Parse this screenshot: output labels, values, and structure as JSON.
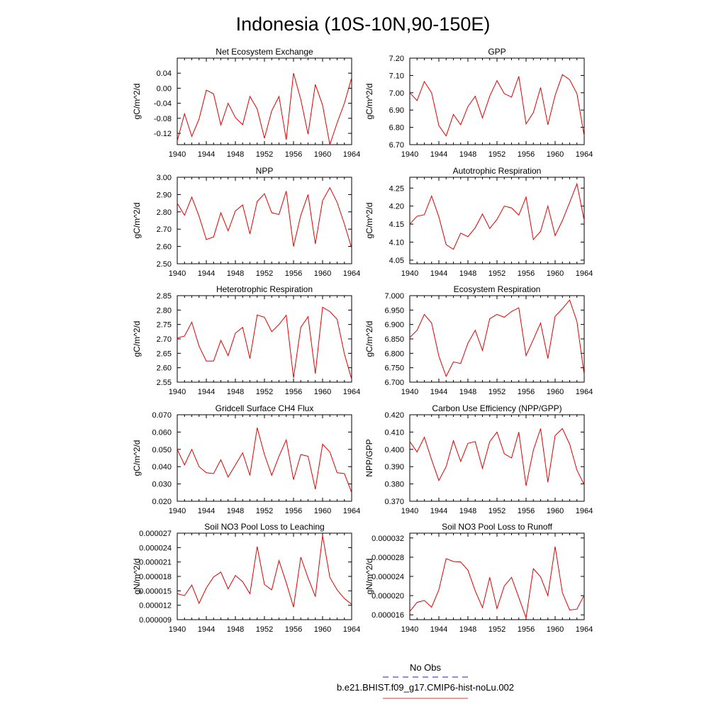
{
  "page": {
    "title": "Indonesia (10S-10N,90-150E)"
  },
  "legend": {
    "items": [
      {
        "label": "No Obs",
        "color": "#4a4acc",
        "dash": true
      },
      {
        "label": "b.e21.BHIST.f09_g17.CMIP6-hist-noLu.002",
        "color": "#e06060",
        "dash": false
      }
    ]
  },
  "chart_data": [
    {
      "type": "line",
      "title": "Net Ecosystem Exchange",
      "ylabel": "gC/m^2/d",
      "xlim": [
        1940,
        1964
      ],
      "ylim": [
        -0.15,
        0.08
      ],
      "xticks": [
        1940,
        1944,
        1948,
        1952,
        1956,
        1960,
        1964
      ],
      "xtick_labels": [
        "1940",
        "1944",
        "1948",
        "1952",
        "1956",
        "1960",
        "1964"
      ],
      "yticks": [
        -0.12,
        -0.08,
        -0.04,
        0.0,
        0.04
      ],
      "ytick_labels": [
        "-0.12",
        "-0.08",
        "-0.04",
        "0.00",
        "0.04"
      ],
      "line_color": "#e00000",
      "x": [
        1940,
        1941,
        1942,
        1943,
        1944,
        1945,
        1946,
        1947,
        1948,
        1949,
        1950,
        1951,
        1952,
        1953,
        1954,
        1955,
        1956,
        1957,
        1958,
        1959,
        1960,
        1961,
        1962,
        1963,
        1964
      ],
      "values": [
        -0.14,
        -0.068,
        -0.128,
        -0.082,
        -0.005,
        -0.015,
        -0.098,
        -0.04,
        -0.078,
        -0.097,
        -0.022,
        -0.055,
        -0.133,
        -0.06,
        -0.022,
        -0.137,
        0.04,
        -0.03,
        -0.122,
        0.01,
        -0.045,
        -0.15,
        -0.092,
        -0.04,
        0.028
      ]
    },
    {
      "type": "line",
      "title": "GPP",
      "ylabel": "gC/m^2/d",
      "xlim": [
        1940,
        1964
      ],
      "ylim": [
        6.7,
        7.2
      ],
      "xticks": [
        1940,
        1944,
        1948,
        1952,
        1956,
        1960,
        1964
      ],
      "xtick_labels": [
        "1940",
        "1944",
        "1948",
        "1952",
        "1956",
        "1960",
        "1964"
      ],
      "yticks": [
        6.7,
        6.8,
        6.9,
        7.0,
        7.1,
        7.2
      ],
      "ytick_labels": [
        "6.70",
        "6.80",
        "6.90",
        "7.00",
        "7.10",
        "7.20"
      ],
      "line_color": "#e00000",
      "x": [
        1940,
        1941,
        1942,
        1943,
        1944,
        1945,
        1946,
        1947,
        1948,
        1949,
        1950,
        1951,
        1952,
        1953,
        1954,
        1955,
        1956,
        1957,
        1958,
        1959,
        1960,
        1961,
        1962,
        1963,
        1964
      ],
      "values": [
        7.0,
        6.955,
        7.065,
        7.0,
        6.81,
        6.75,
        6.875,
        6.815,
        6.92,
        6.98,
        6.855,
        6.98,
        7.07,
        6.995,
        6.975,
        7.095,
        6.82,
        6.885,
        7.03,
        6.815,
        6.985,
        7.105,
        7.075,
        6.995,
        6.75
      ]
    },
    {
      "type": "line",
      "title": "NPP",
      "ylabel": "gC/m^2/d",
      "xlim": [
        1940,
        1964
      ],
      "ylim": [
        2.5,
        3.0
      ],
      "xticks": [
        1940,
        1944,
        1948,
        1952,
        1956,
        1960,
        1964
      ],
      "xtick_labels": [
        "1940",
        "1944",
        "1948",
        "1952",
        "1956",
        "1960",
        "1964"
      ],
      "yticks": [
        2.5,
        2.6,
        2.7,
        2.8,
        2.9,
        3.0
      ],
      "ytick_labels": [
        "2.50",
        "2.60",
        "2.70",
        "2.80",
        "2.90",
        "3.00"
      ],
      "line_color": "#e00000",
      "x": [
        1940,
        1941,
        1942,
        1943,
        1944,
        1945,
        1946,
        1947,
        1948,
        1949,
        1950,
        1951,
        1952,
        1953,
        1954,
        1955,
        1956,
        1957,
        1958,
        1959,
        1960,
        1961,
        1962,
        1963,
        1964
      ],
      "values": [
        2.85,
        2.78,
        2.885,
        2.775,
        2.64,
        2.655,
        2.795,
        2.69,
        2.805,
        2.84,
        2.672,
        2.86,
        2.905,
        2.795,
        2.785,
        2.92,
        2.6,
        2.78,
        2.9,
        2.615,
        2.865,
        2.94,
        2.855,
        2.73,
        2.59
      ]
    },
    {
      "type": "line",
      "title": "Autotrophic Respiration",
      "ylabel": "gC/m^2/d",
      "xlim": [
        1940,
        1964
      ],
      "ylim": [
        4.04,
        4.28
      ],
      "xticks": [
        1940,
        1944,
        1948,
        1952,
        1956,
        1960,
        1964
      ],
      "xtick_labels": [
        "1940",
        "1944",
        "1948",
        "1952",
        "1956",
        "1960",
        "1964"
      ],
      "yticks": [
        4.05,
        4.1,
        4.15,
        4.2,
        4.25
      ],
      "ytick_labels": [
        "4.05",
        "4.10",
        "4.15",
        "4.20",
        "4.25"
      ],
      "line_color": "#e00000",
      "x": [
        1940,
        1941,
        1942,
        1943,
        1944,
        1945,
        1946,
        1947,
        1948,
        1949,
        1950,
        1951,
        1952,
        1953,
        1954,
        1955,
        1956,
        1957,
        1958,
        1959,
        1960,
        1961,
        1962,
        1963,
        1964
      ],
      "values": [
        4.15,
        4.172,
        4.176,
        4.228,
        4.17,
        4.093,
        4.08,
        4.125,
        4.115,
        4.14,
        4.178,
        4.138,
        4.163,
        4.2,
        4.195,
        4.175,
        4.225,
        4.107,
        4.13,
        4.2,
        4.118,
        4.16,
        4.21,
        4.262,
        4.16
      ]
    },
    {
      "type": "line",
      "title": "Heterotrophic Respiration",
      "ylabel": "gC/m^2/d",
      "xlim": [
        1940,
        1964
      ],
      "ylim": [
        2.55,
        2.85
      ],
      "xticks": [
        1940,
        1944,
        1948,
        1952,
        1956,
        1960,
        1964
      ],
      "xtick_labels": [
        "1940",
        "1944",
        "1948",
        "1952",
        "1956",
        "1960",
        "1964"
      ],
      "yticks": [
        2.55,
        2.6,
        2.65,
        2.7,
        2.75,
        2.8,
        2.85
      ],
      "ytick_labels": [
        "2.55",
        "2.60",
        "2.65",
        "2.70",
        "2.75",
        "2.80",
        "2.85"
      ],
      "line_color": "#e00000",
      "x": [
        1940,
        1941,
        1942,
        1943,
        1944,
        1945,
        1946,
        1947,
        1948,
        1949,
        1950,
        1951,
        1952,
        1953,
        1954,
        1955,
        1956,
        1957,
        1958,
        1959,
        1960,
        1961,
        1962,
        1963,
        1964
      ],
      "values": [
        2.703,
        2.71,
        2.758,
        2.675,
        2.623,
        2.623,
        2.695,
        2.642,
        2.72,
        2.74,
        2.632,
        2.783,
        2.775,
        2.725,
        2.75,
        2.782,
        2.565,
        2.74,
        2.777,
        2.58,
        2.81,
        2.795,
        2.768,
        2.648,
        2.56
      ]
    },
    {
      "type": "line",
      "title": "Ecosystem Respiration",
      "ylabel": "gC/m^2/d",
      "xlim": [
        1940,
        1964
      ],
      "ylim": [
        6.7,
        7.0
      ],
      "xticks": [
        1940,
        1944,
        1948,
        1952,
        1956,
        1960,
        1964
      ],
      "xtick_labels": [
        "1940",
        "1944",
        "1948",
        "1952",
        "1956",
        "1960",
        "1964"
      ],
      "yticks": [
        6.7,
        6.75,
        6.8,
        6.85,
        6.9,
        6.95,
        7.0
      ],
      "ytick_labels": [
        "6.700",
        "6.750",
        "6.800",
        "6.850",
        "6.900",
        "6.950",
        "7.000"
      ],
      "line_color": "#e00000",
      "x": [
        1940,
        1941,
        1942,
        1943,
        1944,
        1945,
        1946,
        1947,
        1948,
        1949,
        1950,
        1951,
        1952,
        1953,
        1954,
        1955,
        1956,
        1957,
        1958,
        1959,
        1960,
        1961,
        1962,
        1963,
        1964
      ],
      "values": [
        6.855,
        6.88,
        6.935,
        6.905,
        6.79,
        6.72,
        6.77,
        6.765,
        6.835,
        6.88,
        6.81,
        6.92,
        6.935,
        6.925,
        6.945,
        6.958,
        6.792,
        6.848,
        6.905,
        6.782,
        6.928,
        6.955,
        6.985,
        6.91,
        6.725
      ]
    },
    {
      "type": "line",
      "title": "Gridcell Surface CH4 Flux",
      "ylabel": "gC/m^2/d",
      "xlim": [
        1940,
        1964
      ],
      "ylim": [
        0.02,
        0.07
      ],
      "xticks": [
        1940,
        1944,
        1948,
        1952,
        1956,
        1960,
        1964
      ],
      "xtick_labels": [
        "1940",
        "1944",
        "1948",
        "1952",
        "1956",
        "1960",
        "1964"
      ],
      "yticks": [
        0.02,
        0.03,
        0.04,
        0.05,
        0.06,
        0.07
      ],
      "ytick_labels": [
        "0.020",
        "0.030",
        "0.040",
        "0.050",
        "0.060",
        "0.070"
      ],
      "line_color": "#e00000",
      "x": [
        1940,
        1941,
        1942,
        1943,
        1944,
        1945,
        1946,
        1947,
        1948,
        1949,
        1950,
        1951,
        1952,
        1953,
        1954,
        1955,
        1956,
        1957,
        1958,
        1959,
        1960,
        1961,
        1962,
        1963,
        1964
      ],
      "values": [
        0.05,
        0.041,
        0.05,
        0.04,
        0.0365,
        0.036,
        0.044,
        0.034,
        0.041,
        0.048,
        0.035,
        0.0625,
        0.047,
        0.035,
        0.046,
        0.0555,
        0.0325,
        0.047,
        0.046,
        0.027,
        0.053,
        0.0485,
        0.0365,
        0.036,
        0.025
      ]
    },
    {
      "type": "line",
      "title": "Carbon Use Efficiency (NPP/GPP)",
      "ylabel": "NPP/GPP",
      "xlim": [
        1940,
        1964
      ],
      "ylim": [
        0.37,
        0.42
      ],
      "xticks": [
        1940,
        1944,
        1948,
        1952,
        1956,
        1960,
        1964
      ],
      "xtick_labels": [
        "1940",
        "1944",
        "1948",
        "1952",
        "1956",
        "1960",
        "1964"
      ],
      "yticks": [
        0.37,
        0.38,
        0.39,
        0.4,
        0.41,
        0.42
      ],
      "ytick_labels": [
        "0.370",
        "0.380",
        "0.390",
        "0.400",
        "0.410",
        "0.420"
      ],
      "line_color": "#e00000",
      "x": [
        1940,
        1941,
        1942,
        1943,
        1944,
        1945,
        1946,
        1947,
        1948,
        1949,
        1950,
        1951,
        1952,
        1953,
        1954,
        1955,
        1956,
        1957,
        1958,
        1959,
        1960,
        1961,
        1962,
        1963,
        1964
      ],
      "values": [
        0.4045,
        0.3985,
        0.407,
        0.394,
        0.382,
        0.39,
        0.405,
        0.393,
        0.4035,
        0.4045,
        0.389,
        0.4045,
        0.41,
        0.3975,
        0.395,
        0.41,
        0.379,
        0.3995,
        0.412,
        0.381,
        0.408,
        0.412,
        0.403,
        0.388,
        0.3795
      ]
    },
    {
      "type": "line",
      "title": "Soil NO3 Pool Loss to Leaching",
      "ylabel": "gN/m^2/d",
      "xlim": [
        1940,
        1964
      ],
      "ylim": [
        9e-06,
        2.7e-05
      ],
      "xticks": [
        1940,
        1944,
        1948,
        1952,
        1956,
        1960,
        1964
      ],
      "xtick_labels": [
        "1940",
        "1944",
        "1948",
        "1952",
        "1956",
        "1960",
        "1964"
      ],
      "yticks": [
        9e-06,
        1.2e-05,
        1.5e-05,
        1.8e-05,
        2.1e-05,
        2.4e-05,
        2.7e-05
      ],
      "ytick_labels": [
        "0.000009",
        "0.000012",
        "0.000015",
        "0.000018",
        "0.000021",
        "0.000024",
        "0.000027"
      ],
      "line_color": "#e00000",
      "x": [
        1940,
        1941,
        1942,
        1943,
        1944,
        1945,
        1946,
        1947,
        1948,
        1949,
        1950,
        1951,
        1952,
        1953,
        1954,
        1955,
        1956,
        1957,
        1958,
        1959,
        1960,
        1961,
        1962,
        1963,
        1964
      ],
      "values": [
        1.44e-05,
        1.4e-05,
        1.62e-05,
        1.24e-05,
        1.56e-05,
        1.79e-05,
        1.89e-05,
        1.54e-05,
        1.82e-05,
        1.69e-05,
        1.44e-05,
        2.42e-05,
        1.63e-05,
        1.52e-05,
        2.13e-05,
        1.67e-05,
        1.16e-05,
        2.2e-05,
        1.77e-05,
        1.38e-05,
        2.65e-05,
        1.78e-05,
        1.52e-05,
        1.34e-05,
        1.22e-05
      ]
    },
    {
      "type": "line",
      "title": "Soil NO3 Pool Loss to Runoff",
      "ylabel": "gN/m^2/d",
      "xlim": [
        1940,
        1964
      ],
      "ylim": [
        1.5e-05,
        3.3e-05
      ],
      "xticks": [
        1940,
        1944,
        1948,
        1952,
        1956,
        1960,
        1964
      ],
      "xtick_labels": [
        "1940",
        "1944",
        "1948",
        "1952",
        "1956",
        "1960",
        "1964"
      ],
      "yticks": [
        1.6e-05,
        2e-05,
        2.4e-05,
        2.8e-05,
        3.2e-05
      ],
      "ytick_labels": [
        "0.000016",
        "0.000020",
        "0.000024",
        "0.000028",
        "0.000032"
      ],
      "line_color": "#e00000",
      "x": [
        1940,
        1941,
        1942,
        1943,
        1944,
        1945,
        1946,
        1947,
        1948,
        1949,
        1950,
        1951,
        1952,
        1953,
        1954,
        1955,
        1956,
        1957,
        1958,
        1959,
        1960,
        1961,
        1962,
        1963,
        1964
      ],
      "values": [
        1.67e-05,
        1.86e-05,
        1.9e-05,
        1.76e-05,
        2.12e-05,
        2.77e-05,
        2.71e-05,
        2.7e-05,
        2.53e-05,
        2.1e-05,
        1.75e-05,
        2.38e-05,
        1.73e-05,
        2.2e-05,
        2.38e-05,
        1.96e-05,
        1.54e-05,
        2.56e-05,
        2.39e-05,
        2e-05,
        3.02e-05,
        2.06e-05,
        1.7e-05,
        1.72e-05,
        2.01e-05
      ]
    }
  ]
}
